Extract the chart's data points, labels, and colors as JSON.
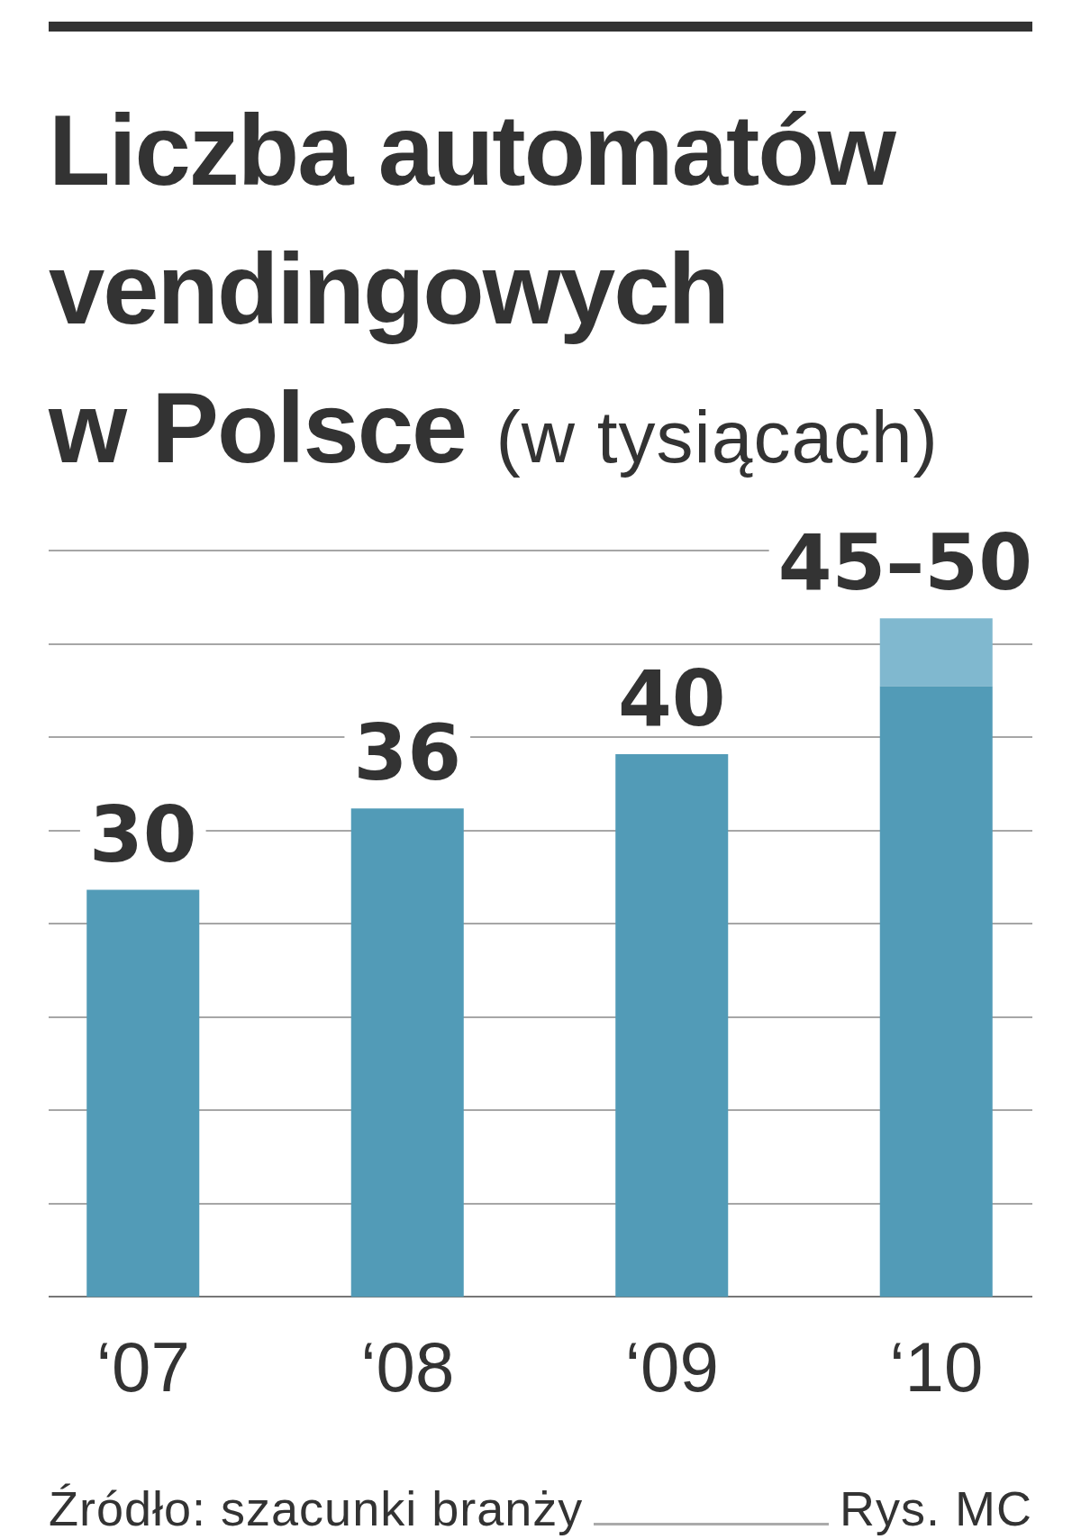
{
  "chart_data": {
    "type": "bar",
    "title": "Liczba automatów vendingowych w Polsce (w tysiącach)",
    "categories": [
      "‘07",
      "‘08",
      "‘09",
      "‘10"
    ],
    "series": [
      {
        "color": "#529bb7",
        "values": [
          30,
          36,
          40,
          45
        ],
        "value_labels": [
          "30",
          "36",
          "40",
          null
        ]
      },
      {
        "color": "#80b8cf",
        "values": [
          null,
          null,
          null,
          5
        ],
        "value_labels": [
          null,
          null,
          null,
          "45–50"
        ]
      }
    ],
    "stacked": true,
    "grid": "y",
    "tick_labels": "x",
    "annotations": [
      "Źródło: szacunki branży",
      "Rys. MC"
    ]
  }
}
